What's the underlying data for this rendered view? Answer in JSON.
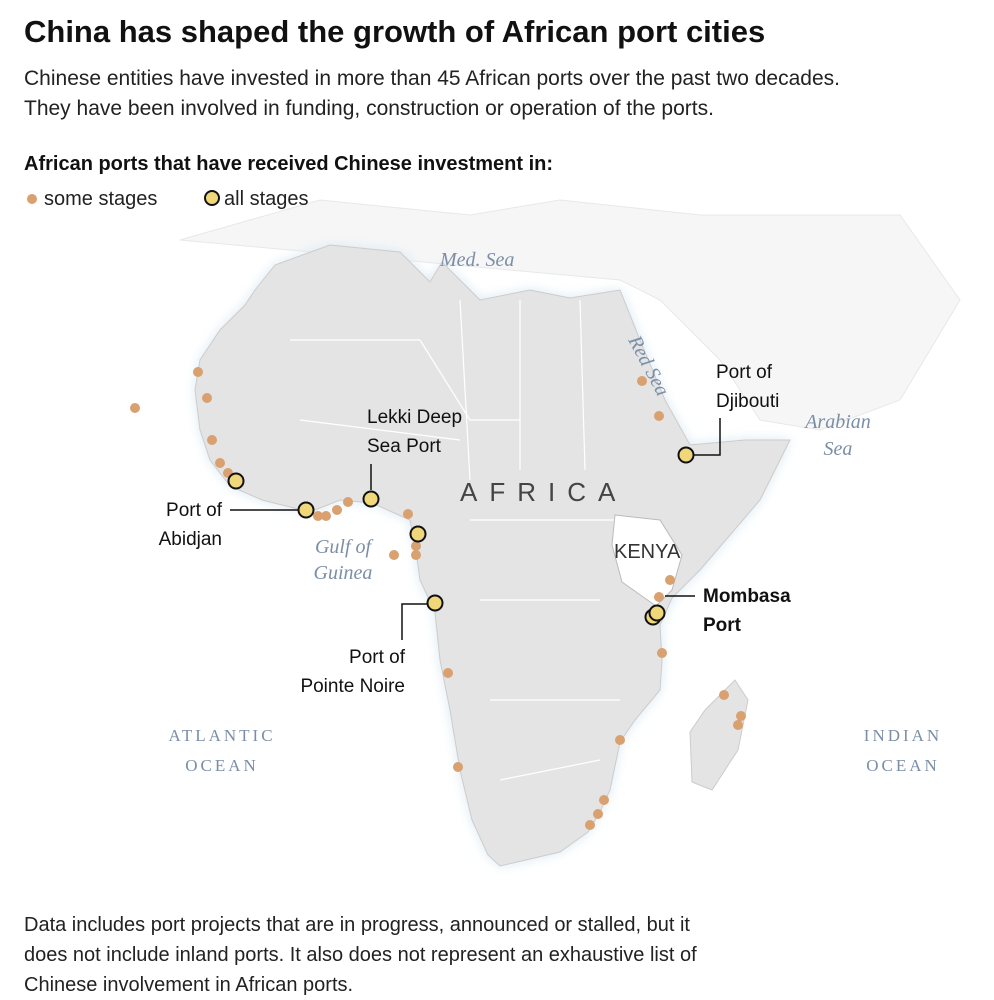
{
  "header": {
    "title": "China has shaped the growth of African port cities",
    "subtitle": [
      "Chinese entities have invested in more than 45 African ports over the past two decades.",
      "They have been involved in funding, construction or operation of the ports."
    ]
  },
  "legend": {
    "title": "African ports that have received Chinese investment in:",
    "items": [
      "some stages",
      "all stages"
    ]
  },
  "map": {
    "water_labels": {
      "med": "Med. Sea",
      "red": "Red Sea",
      "arabian": [
        "Arabian",
        "Sea"
      ],
      "gulf": [
        "Gulf of",
        "Guinea"
      ],
      "atlantic": [
        "ATLANTIC",
        "OCEAN"
      ],
      "indian": [
        "INDIAN",
        "OCEAN"
      ]
    },
    "region_labels": {
      "continent": "AFRICA",
      "country": "KENYA"
    },
    "ports": {
      "lekki": [
        "Lekki Deep",
        "Sea Port"
      ],
      "abidjan": [
        "Port of",
        "Abidjan"
      ],
      "pointe_noire": [
        "Port of",
        "Pointe Noire"
      ],
      "djibouti": [
        "Port of",
        "Djibouti"
      ],
      "mombasa": [
        "Mombasa",
        "Port"
      ]
    }
  },
  "footnote": [
    "Data includes port projects that are in progress, announced or stalled, but it",
    "does not include inland ports. It also does not represent an exhaustive list of",
    "Chinese involvement in African ports."
  ]
}
